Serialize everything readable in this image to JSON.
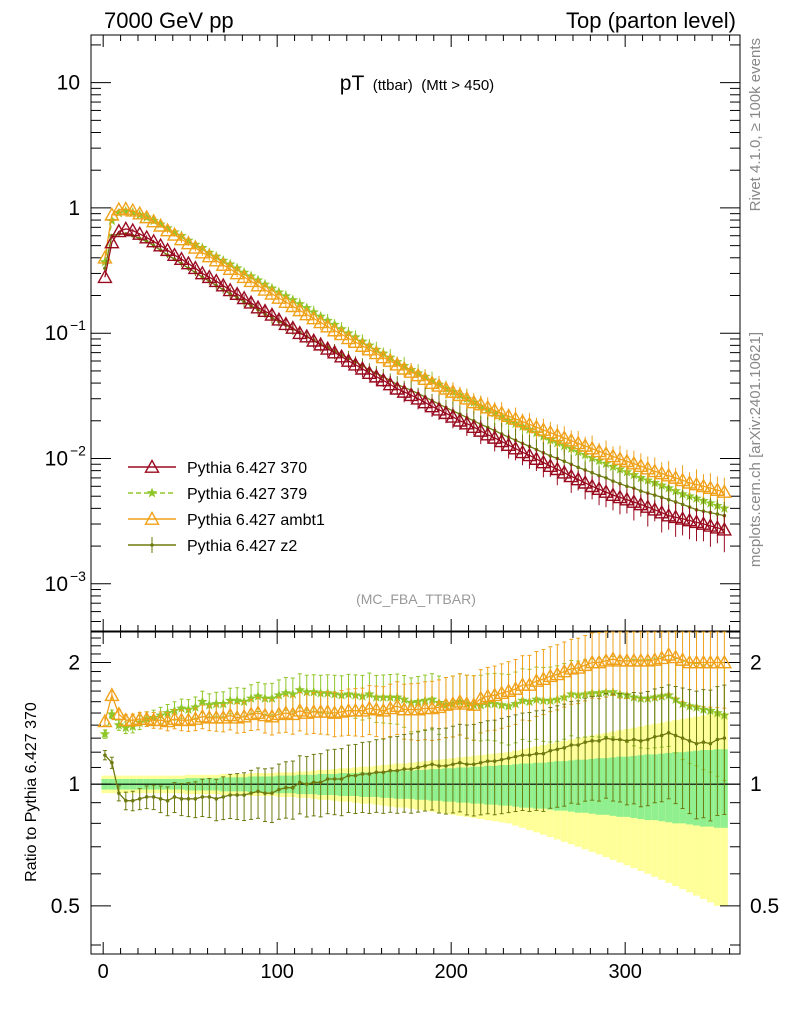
{
  "header": {
    "left": "7000 GeV pp",
    "right": "Top (parton level)"
  },
  "title": {
    "main": "pT",
    "sub1": "(ttbar)",
    "sub2": "(Mtt > 450)"
  },
  "side_labels": {
    "rivet": "Rivet 4.1.0, ≥ 100k events",
    "mcplots": "mcplots.cern.ch [arXiv:2401.10621]"
  },
  "analysis_tag": "(MC_FBA_TTBAR)",
  "ratio_ylabel": "Ratio to Pythia 6.427 370",
  "colors": {
    "p370": "#990a1f",
    "p379": "#8fc72a",
    "ambt1": "#f0a11a",
    "z2": "#6e7a0f",
    "band_inner": "#90f090",
    "band_outer": "#ffff99"
  },
  "legend": [
    {
      "label": "Pythia 6.427 370",
      "key": "p370",
      "marker": "triangle-open",
      "dash": false
    },
    {
      "label": "Pythia 6.427 379",
      "key": "p379",
      "marker": "star",
      "dash": true
    },
    {
      "label": "Pythia 6.427 ambt1",
      "key": "ambt1",
      "marker": "triangle-open",
      "dash": false
    },
    {
      "label": "Pythia 6.427 z2",
      "key": "z2",
      "marker": "dot",
      "dash": false
    }
  ],
  "chart_data": {
    "type": "line",
    "title": "pT (ttbar) (Mtt > 450)",
    "xlabel": "",
    "ylabel": "",
    "x_range": [
      -7,
      366
    ],
    "x_ticks": [
      0,
      100,
      200,
      300
    ],
    "main_ylim": [
      0.00042,
      24
    ],
    "main_scale": "log",
    "main_ytick_labels": [
      {
        "value": 10,
        "base": "10",
        "exp": ""
      },
      {
        "value": 1,
        "base": "1",
        "exp": ""
      },
      {
        "value": 0.1,
        "base": "10",
        "exp": "−1"
      },
      {
        "value": 0.01,
        "base": "10",
        "exp": "−2"
      },
      {
        "value": 0.001,
        "base": "10",
        "exp": "−3"
      }
    ],
    "ratio_ylim": [
      0.38,
      2.38
    ],
    "ratio_scale": "log",
    "ratio_ytick_labels": [
      {
        "value": 2,
        "label": "2"
      },
      {
        "value": 1,
        "label": "1"
      },
      {
        "value": 0.5,
        "label": "0.5"
      }
    ],
    "x": [
      1,
      5,
      9,
      13,
      17,
      21,
      25,
      29,
      33,
      37,
      41,
      45,
      49,
      53,
      57,
      61,
      65,
      69,
      73,
      77,
      81,
      85,
      89,
      93,
      97,
      101,
      105,
      109,
      113,
      117,
      121,
      125,
      129,
      133,
      137,
      141,
      145,
      149,
      153,
      157,
      161,
      165,
      169,
      173,
      177,
      181,
      185,
      189,
      193,
      197,
      201,
      205,
      209,
      213,
      217,
      221,
      225,
      229,
      233,
      237,
      241,
      245,
      249,
      253,
      257,
      261,
      265,
      269,
      273,
      277,
      281,
      285,
      289,
      293,
      297,
      301,
      305,
      309,
      313,
      317,
      321,
      325,
      329,
      333,
      337,
      341,
      345,
      349,
      353,
      357
    ],
    "series": [
      {
        "name": "Pythia 6.427 370",
        "key": "p370",
        "values": [
          0.28,
          0.53,
          0.65,
          0.68,
          0.66,
          0.62,
          0.58,
          0.54,
          0.5,
          0.46,
          0.42,
          0.39,
          0.36,
          0.33,
          0.3,
          0.28,
          0.26,
          0.24,
          0.22,
          0.205,
          0.19,
          0.175,
          0.16,
          0.15,
          0.14,
          0.128,
          0.118,
          0.11,
          0.1,
          0.094,
          0.087,
          0.081,
          0.075,
          0.07,
          0.065,
          0.06,
          0.056,
          0.052,
          0.048,
          0.045,
          0.042,
          0.039,
          0.036,
          0.034,
          0.032,
          0.03,
          0.028,
          0.026,
          0.0245,
          0.023,
          0.0215,
          0.02,
          0.019,
          0.0178,
          0.0166,
          0.0155,
          0.0146,
          0.0137,
          0.0128,
          0.012,
          0.0112,
          0.0106,
          0.0099,
          0.0093,
          0.0087,
          0.0082,
          0.0077,
          0.0072,
          0.0068,
          0.0064,
          0.006,
          0.0057,
          0.0054,
          0.0051,
          0.0049,
          0.0047,
          0.0045,
          0.0043,
          0.0041,
          0.0039,
          0.0037,
          0.0035,
          0.0034,
          0.0033,
          0.0032,
          0.0031,
          0.003,
          0.0029,
          0.0028,
          0.0027
        ]
      },
      {
        "name": "Pythia 6.427 379",
        "key": "p379",
        "values": [
          0.37,
          0.79,
          0.91,
          0.94,
          0.92,
          0.88,
          0.84,
          0.79,
          0.74,
          0.69,
          0.64,
          0.6,
          0.55,
          0.51,
          0.48,
          0.44,
          0.41,
          0.38,
          0.355,
          0.33,
          0.305,
          0.285,
          0.265,
          0.245,
          0.228,
          0.212,
          0.198,
          0.184,
          0.171,
          0.159,
          0.147,
          0.136,
          0.126,
          0.117,
          0.108,
          0.1,
          0.093,
          0.086,
          0.08,
          0.074,
          0.069,
          0.064,
          0.059,
          0.055,
          0.051,
          0.048,
          0.045,
          0.042,
          0.039,
          0.036,
          0.034,
          0.032,
          0.03,
          0.028,
          0.026,
          0.0245,
          0.023,
          0.0215,
          0.02,
          0.019,
          0.018,
          0.017,
          0.016,
          0.015,
          0.014,
          0.0133,
          0.0126,
          0.012,
          0.0113,
          0.0107,
          0.0101,
          0.0096,
          0.0091,
          0.0086,
          0.0082,
          0.0078,
          0.0074,
          0.007,
          0.0067,
          0.0064,
          0.0061,
          0.0058,
          0.0055,
          0.0052,
          0.005,
          0.0048,
          0.0046,
          0.0044,
          0.0042,
          0.004
        ]
      },
      {
        "name": "Pythia 6.427 ambt1",
        "key": "ambt1",
        "values": [
          0.4,
          0.88,
          0.97,
          0.98,
          0.95,
          0.9,
          0.84,
          0.78,
          0.72,
          0.66,
          0.61,
          0.56,
          0.52,
          0.48,
          0.44,
          0.41,
          0.38,
          0.35,
          0.325,
          0.3,
          0.28,
          0.26,
          0.24,
          0.222,
          0.206,
          0.191,
          0.177,
          0.164,
          0.152,
          0.141,
          0.131,
          0.122,
          0.113,
          0.105,
          0.098,
          0.091,
          0.085,
          0.079,
          0.074,
          0.069,
          0.064,
          0.06,
          0.056,
          0.052,
          0.049,
          0.046,
          0.043,
          0.04,
          0.038,
          0.036,
          0.034,
          0.032,
          0.03,
          0.028,
          0.027,
          0.0255,
          0.0242,
          0.023,
          0.0218,
          0.0207,
          0.0197,
          0.0187,
          0.0178,
          0.0169,
          0.0161,
          0.0153,
          0.0146,
          0.0139,
          0.0132,
          0.0126,
          0.012,
          0.0114,
          0.0109,
          0.0104,
          0.0099,
          0.0095,
          0.0091,
          0.0087,
          0.0083,
          0.0079,
          0.0076,
          0.0073,
          0.007,
          0.0067,
          0.0064,
          0.0062,
          0.006,
          0.0058,
          0.0056,
          0.0054
        ]
      },
      {
        "name": "Pythia 6.427 z2",
        "key": "z2",
        "values": [
          0.33,
          0.6,
          0.62,
          0.62,
          0.6,
          0.57,
          0.54,
          0.5,
          0.46,
          0.42,
          0.39,
          0.36,
          0.33,
          0.305,
          0.28,
          0.26,
          0.24,
          0.222,
          0.206,
          0.192,
          0.178,
          0.166,
          0.154,
          0.143,
          0.133,
          0.124,
          0.116,
          0.108,
          0.101,
          0.094,
          0.088,
          0.082,
          0.077,
          0.072,
          0.067,
          0.063,
          0.059,
          0.055,
          0.051,
          0.048,
          0.045,
          0.042,
          0.039,
          0.037,
          0.035,
          0.033,
          0.031,
          0.029,
          0.0272,
          0.0255,
          0.024,
          0.0226,
          0.0212,
          0.02,
          0.0188,
          0.0177,
          0.0167,
          0.0157,
          0.0148,
          0.014,
          0.0132,
          0.0125,
          0.0118,
          0.0111,
          0.0105,
          0.01,
          0.0095,
          0.009,
          0.0085,
          0.0081,
          0.0077,
          0.0073,
          0.007,
          0.0066,
          0.0063,
          0.006,
          0.0058,
          0.0055,
          0.0053,
          0.0051,
          0.0049,
          0.0047,
          0.0045,
          0.0043,
          0.0041,
          0.0039,
          0.0038,
          0.0037,
          0.0036,
          0.0035
        ]
      }
    ],
    "ratio_series": [
      {
        "name": "Pythia 6.427 379",
        "key": "p379",
        "values": [
          1.33,
          1.49,
          1.4,
          1.38,
          1.39,
          1.42,
          1.45,
          1.46,
          1.48,
          1.5,
          1.52,
          1.54,
          1.53,
          1.55,
          1.6,
          1.57,
          1.58,
          1.58,
          1.61,
          1.61,
          1.6,
          1.63,
          1.65,
          1.63,
          1.63,
          1.66,
          1.68,
          1.67,
          1.71,
          1.69,
          1.69,
          1.68,
          1.68,
          1.67,
          1.66,
          1.67,
          1.66,
          1.65,
          1.67,
          1.64,
          1.64,
          1.64,
          1.64,
          1.62,
          1.59,
          1.6,
          1.61,
          1.62,
          1.59,
          1.57,
          1.58,
          1.6,
          1.58,
          1.57,
          1.57,
          1.58,
          1.58,
          1.57,
          1.56,
          1.58,
          1.61,
          1.6,
          1.62,
          1.61,
          1.61,
          1.62,
          1.64,
          1.67,
          1.66,
          1.67,
          1.68,
          1.68,
          1.69,
          1.69,
          1.67,
          1.66,
          1.64,
          1.63,
          1.63,
          1.64,
          1.65,
          1.66,
          1.62,
          1.58,
          1.56,
          1.55,
          1.53,
          1.52,
          1.5,
          1.48
        ]
      },
      {
        "name": "Pythia 6.427 ambt1",
        "key": "ambt1",
        "values": [
          1.43,
          1.66,
          1.49,
          1.44,
          1.44,
          1.45,
          1.45,
          1.44,
          1.44,
          1.43,
          1.45,
          1.44,
          1.44,
          1.45,
          1.47,
          1.46,
          1.46,
          1.46,
          1.48,
          1.46,
          1.47,
          1.49,
          1.5,
          1.48,
          1.47,
          1.49,
          1.5,
          1.49,
          1.52,
          1.5,
          1.51,
          1.51,
          1.51,
          1.5,
          1.51,
          1.52,
          1.52,
          1.52,
          1.54,
          1.53,
          1.52,
          1.54,
          1.56,
          1.53,
          1.53,
          1.53,
          1.54,
          1.54,
          1.55,
          1.57,
          1.58,
          1.6,
          1.58,
          1.57,
          1.63,
          1.65,
          1.66,
          1.68,
          1.7,
          1.72,
          1.76,
          1.76,
          1.8,
          1.82,
          1.85,
          1.87,
          1.9,
          1.93,
          1.94,
          1.97,
          2.0,
          2.0,
          2.02,
          2.04,
          2.02,
          2.02,
          2.02,
          2.02,
          2.02,
          2.03,
          2.05,
          2.09,
          2.06,
          2.03,
          2.0,
          2.0,
          2.0,
          2.0,
          2.0,
          2.0
        ]
      },
      {
        "name": "Pythia 6.427 z2",
        "key": "z2",
        "values": [
          1.18,
          1.13,
          0.95,
          0.91,
          0.91,
          0.92,
          0.93,
          0.93,
          0.92,
          0.91,
          0.93,
          0.92,
          0.92,
          0.92,
          0.93,
          0.93,
          0.92,
          0.93,
          0.94,
          0.94,
          0.94,
          0.95,
          0.96,
          0.95,
          0.95,
          0.97,
          0.98,
          0.98,
          1.01,
          1.0,
          1.01,
          1.01,
          1.03,
          1.03,
          1.03,
          1.05,
          1.05,
          1.06,
          1.06,
          1.07,
          1.07,
          1.08,
          1.08,
          1.09,
          1.09,
          1.1,
          1.11,
          1.12,
          1.11,
          1.11,
          1.12,
          1.13,
          1.12,
          1.12,
          1.13,
          1.14,
          1.14,
          1.15,
          1.16,
          1.17,
          1.18,
          1.18,
          1.19,
          1.19,
          1.21,
          1.22,
          1.23,
          1.25,
          1.25,
          1.27,
          1.28,
          1.28,
          1.3,
          1.29,
          1.29,
          1.28,
          1.29,
          1.28,
          1.29,
          1.31,
          1.32,
          1.34,
          1.32,
          1.3,
          1.28,
          1.26,
          1.27,
          1.26,
          1.29,
          1.3
        ]
      }
    ],
    "ratio_bands": {
      "inner_halfwidth": [
        0.03,
        0.03,
        0.03,
        0.03,
        0.03,
        0.03,
        0.03,
        0.03,
        0.03,
        0.03,
        0.03,
        0.03,
        0.035,
        0.035,
        0.035,
        0.035,
        0.035,
        0.04,
        0.04,
        0.04,
        0.04,
        0.045,
        0.045,
        0.045,
        0.045,
        0.05,
        0.05,
        0.05,
        0.055,
        0.055,
        0.055,
        0.06,
        0.06,
        0.06,
        0.065,
        0.065,
        0.065,
        0.07,
        0.07,
        0.07,
        0.075,
        0.075,
        0.08,
        0.08,
        0.08,
        0.085,
        0.085,
        0.09,
        0.09,
        0.095,
        0.095,
        0.1,
        0.1,
        0.105,
        0.105,
        0.11,
        0.11,
        0.115,
        0.115,
        0.12,
        0.125,
        0.125,
        0.13,
        0.13,
        0.135,
        0.14,
        0.14,
        0.145,
        0.15,
        0.15,
        0.155,
        0.16,
        0.16,
        0.165,
        0.17,
        0.17,
        0.175,
        0.18,
        0.185,
        0.185,
        0.19,
        0.195,
        0.2,
        0.2,
        0.205,
        0.21,
        0.215,
        0.215,
        0.22,
        0.22
      ],
      "outer_halfwidth": [
        0.05,
        0.05,
        0.05,
        0.05,
        0.05,
        0.05,
        0.05,
        0.05,
        0.05,
        0.05,
        0.05,
        0.05,
        0.055,
        0.055,
        0.055,
        0.055,
        0.055,
        0.06,
        0.06,
        0.06,
        0.06,
        0.065,
        0.065,
        0.065,
        0.065,
        0.07,
        0.07,
        0.07,
        0.075,
        0.075,
        0.08,
        0.085,
        0.085,
        0.09,
        0.095,
        0.095,
        0.1,
        0.105,
        0.105,
        0.11,
        0.115,
        0.12,
        0.125,
        0.125,
        0.13,
        0.135,
        0.14,
        0.145,
        0.15,
        0.155,
        0.16,
        0.165,
        0.17,
        0.175,
        0.18,
        0.185,
        0.19,
        0.195,
        0.2,
        0.21,
        0.22,
        0.23,
        0.24,
        0.25,
        0.26,
        0.27,
        0.28,
        0.29,
        0.3,
        0.31,
        0.32,
        0.33,
        0.34,
        0.35,
        0.36,
        0.37,
        0.38,
        0.39,
        0.4,
        0.41,
        0.42,
        0.43,
        0.44,
        0.45,
        0.46,
        0.47,
        0.48,
        0.49,
        0.5,
        0.5
      ]
    }
  }
}
